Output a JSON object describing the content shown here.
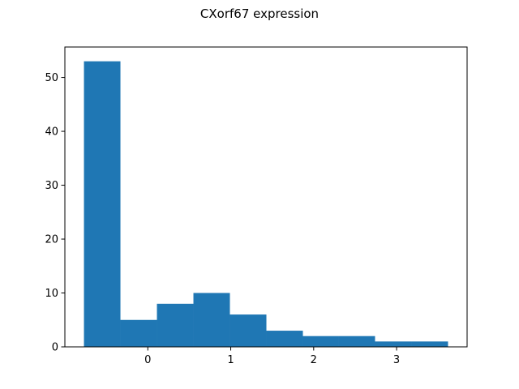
{
  "chart_data": {
    "type": "histogram",
    "title": "CXorf67 expression",
    "xlabel": "",
    "ylabel": "",
    "bin_edges": [
      -0.77,
      -0.33,
      0.11,
      0.55,
      0.99,
      1.43,
      1.87,
      2.3,
      2.74,
      3.18,
      3.62
    ],
    "counts": [
      53,
      5,
      8,
      10,
      6,
      3,
      2,
      2,
      1,
      1
    ],
    "xlim": [
      -1.0,
      3.85
    ],
    "ylim": [
      0,
      55.65
    ],
    "xticks": [
      0,
      1,
      2,
      3
    ],
    "yticks": [
      0,
      10,
      20,
      30,
      40,
      50
    ],
    "bar_color": "#1f77b4",
    "grid": false,
    "legend": "none"
  }
}
